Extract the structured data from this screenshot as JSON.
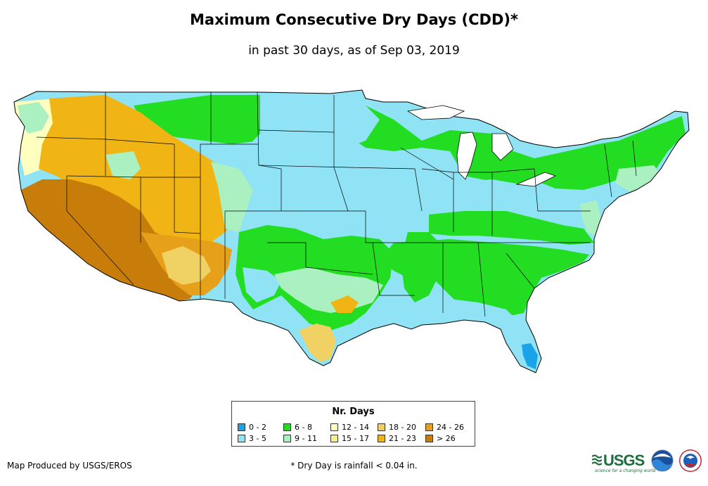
{
  "title": "Maximum Consecutive Dry Days (CDD)*",
  "subtitle": "in past 30 days, as of Sep 03, 2019",
  "legend": {
    "title": "Nr. Days",
    "items": [
      {
        "label": "0 - 2",
        "color": "#1aa3e8"
      },
      {
        "label": "3 - 5",
        "color": "#8fe3f5"
      },
      {
        "label": "6 - 8",
        "color": "#22dd22"
      },
      {
        "label": "9 - 11",
        "color": "#aaf0c0"
      },
      {
        "label": "12 - 14",
        "color": "#ffffc0"
      },
      {
        "label": "15 - 17",
        "color": "#f5f08c"
      },
      {
        "label": "18 - 20",
        "color": "#f0d264"
      },
      {
        "label": "21 - 23",
        "color": "#f0b414"
      },
      {
        "label": "24 - 26",
        "color": "#e6a01a"
      },
      {
        "label": "> 26",
        "color": "#c87d0a"
      }
    ]
  },
  "credit": "Map Produced by USGS/EROS",
  "footnote": "* Dry Day is rainfall < 0.04 in.",
  "logos": {
    "usgs": "USGS",
    "usgs_tagline": "science for a changing world",
    "noaa": "noaa-logo",
    "nws": "nws-logo"
  }
}
